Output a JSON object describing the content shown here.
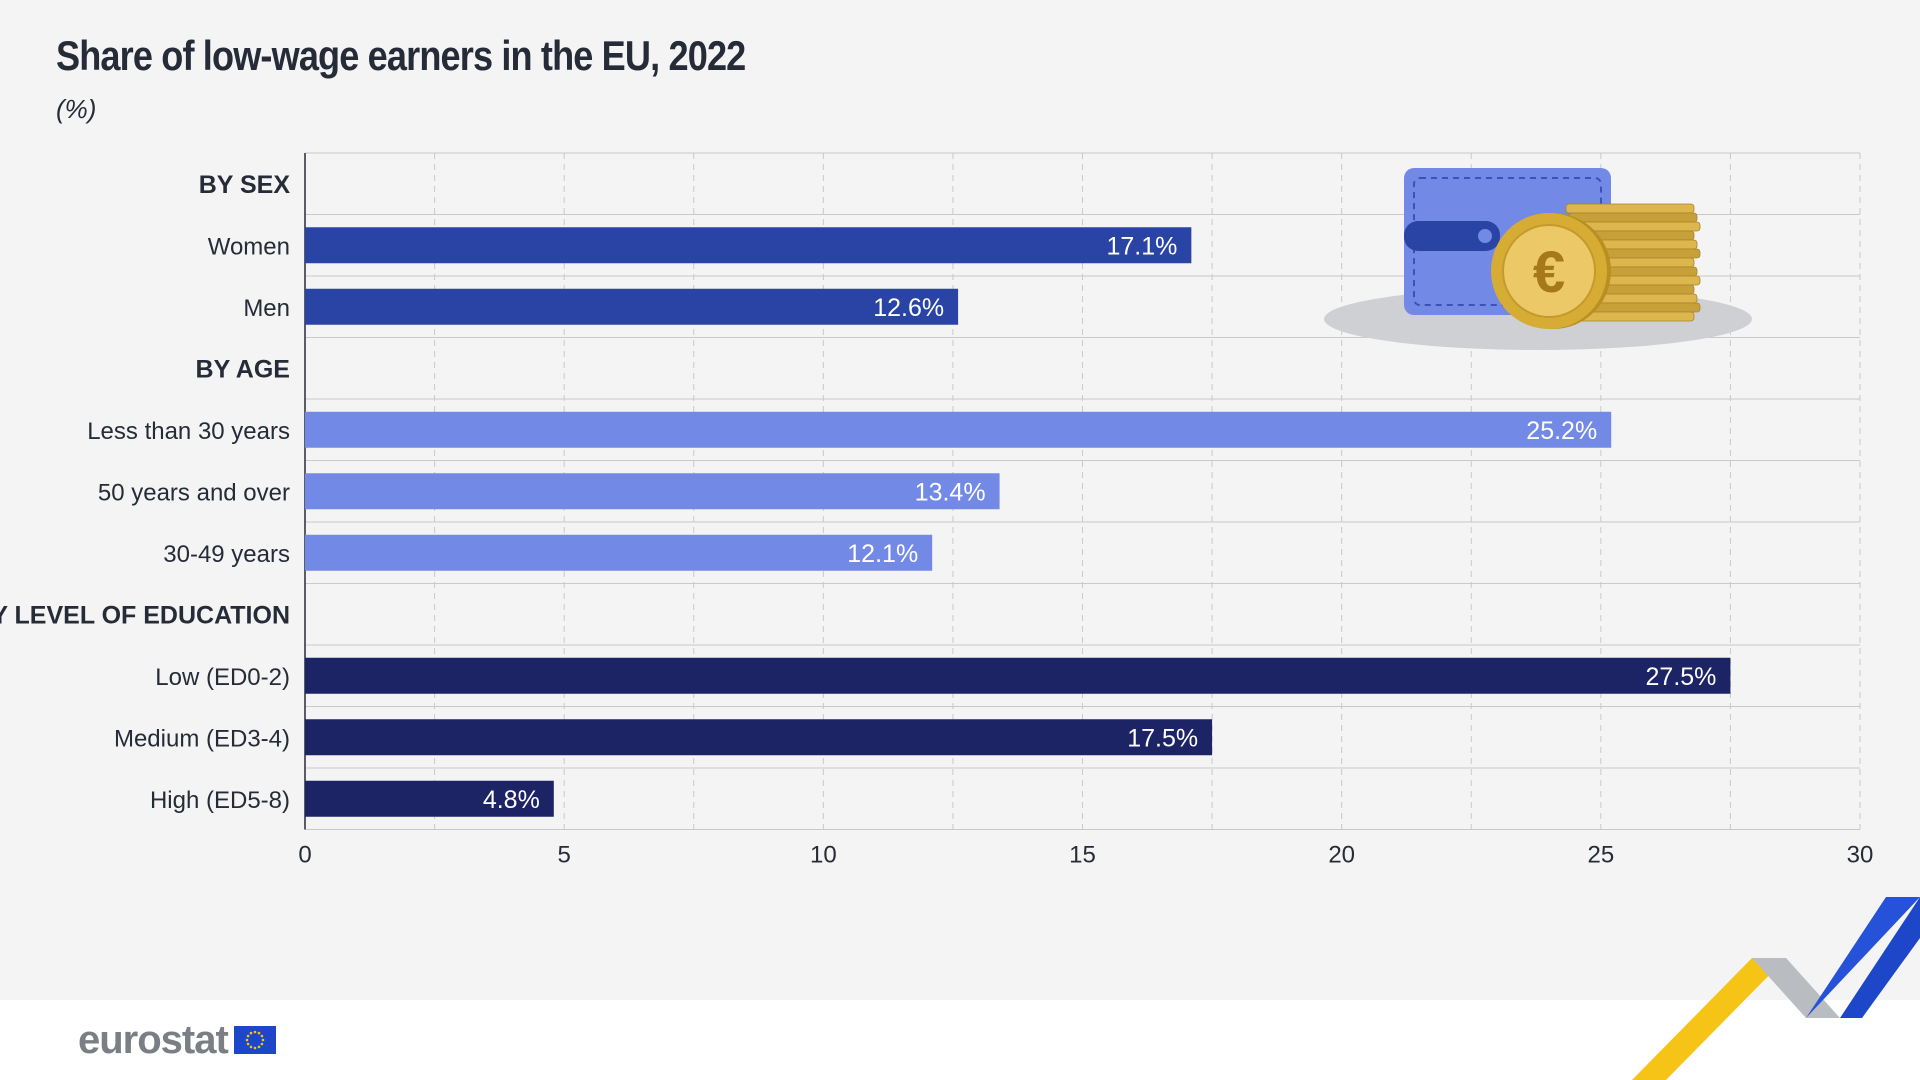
{
  "header": {
    "title": "Share of low-wage earners in the EU, 2022",
    "subtitle": "(%)"
  },
  "brand": {
    "name": "eurostat"
  },
  "colors": {
    "sex": "#2a44a6",
    "age": "#7389e6",
    "education": "#1c2466",
    "label_text": "#262b38",
    "grid": "#c9c9c9"
  },
  "chart_data": {
    "type": "bar",
    "orientation": "horizontal",
    "title": "Share of low-wage earners in the EU, 2022",
    "subtitle": "(%)",
    "xlim": [
      0,
      30
    ],
    "xticks": [
      0,
      5,
      10,
      15,
      20,
      25,
      30
    ],
    "grid": true,
    "value_suffix": "%",
    "groups": [
      {
        "heading": "BY SEX",
        "color_key": "sex",
        "categories": [
          "Women",
          "Men"
        ],
        "values": [
          17.1,
          12.6
        ]
      },
      {
        "heading": "BY AGE",
        "color_key": "age",
        "categories": [
          "Less than 30 years",
          "50 years and over",
          "30-49 years"
        ],
        "values": [
          25.2,
          13.4,
          12.1
        ]
      },
      {
        "heading": "BY LEVEL OF EDUCATION",
        "color_key": "education",
        "categories": [
          "Low (ED0-2)",
          "Medium (ED3-4)",
          "High (ED5-8)"
        ],
        "values": [
          27.5,
          17.5,
          4.8
        ]
      }
    ]
  },
  "illustration": {
    "icons": [
      "wallet-icon",
      "euro-coin-icon",
      "coin-stack-icon"
    ],
    "coin_symbol": "€"
  }
}
